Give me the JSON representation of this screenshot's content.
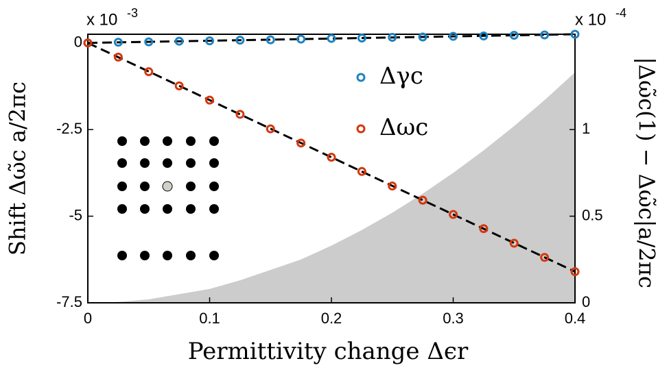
{
  "chart_data": {
    "type": "scatter",
    "xlabel": "Permittivity change Δϵr",
    "ylabel": "Shift Δω̃c a/2πc",
    "y2label": "|Δω̃c(1) − Δω̃c|a/2πc",
    "y_scale_label": "x 10",
    "y_scale_exponent": "-3",
    "y2_scale_label": "x 10",
    "y2_scale_exponent": "-4",
    "xlim": [
      0,
      0.4
    ],
    "xticks": [
      0,
      0.1,
      0.2,
      0.3,
      0.4
    ],
    "ylim": [
      -7.5,
      0.25
    ],
    "yticks": [
      0,
      -2.5,
      -5,
      -7.5
    ],
    "y2lim": [
      0,
      1.55
    ],
    "y2ticks": [
      0,
      0.5,
      1
    ],
    "x": [
      0,
      0.025,
      0.05,
      0.075,
      0.1,
      0.125,
      0.15,
      0.175,
      0.2,
      0.225,
      0.25,
      0.275,
      0.3,
      0.325,
      0.35,
      0.375,
      0.4
    ],
    "series": [
      {
        "name": "Δγc",
        "color": "#1f82c0",
        "values": [
          0,
          0.02,
          0.03,
          0.05,
          0.06,
          0.08,
          0.09,
          0.11,
          0.13,
          0.14,
          0.16,
          0.17,
          0.19,
          0.2,
          0.22,
          0.23,
          0.25
        ]
      },
      {
        "name": "Δωc",
        "color": "#d4380d",
        "values": [
          0,
          -0.41,
          -0.83,
          -1.24,
          -1.65,
          -2.06,
          -2.48,
          -2.89,
          -3.3,
          -3.71,
          -4.13,
          -4.54,
          -4.95,
          -5.36,
          -5.78,
          -6.19,
          -6.6
        ]
      }
    ],
    "fits": [
      {
        "color": "#000000",
        "x": [
          0,
          0.4
        ],
        "values": [
          0,
          0.25
        ]
      },
      {
        "color": "#000000",
        "x": [
          0,
          0.4
        ],
        "values": [
          0,
          -6.6
        ]
      }
    ],
    "area": {
      "axis": "y2",
      "color": "#cccccc",
      "values": [
        0,
        0.005,
        0.02,
        0.05,
        0.08,
        0.13,
        0.19,
        0.25,
        0.33,
        0.42,
        0.52,
        0.63,
        0.75,
        0.88,
        1.02,
        1.17,
        1.33
      ]
    }
  }
}
